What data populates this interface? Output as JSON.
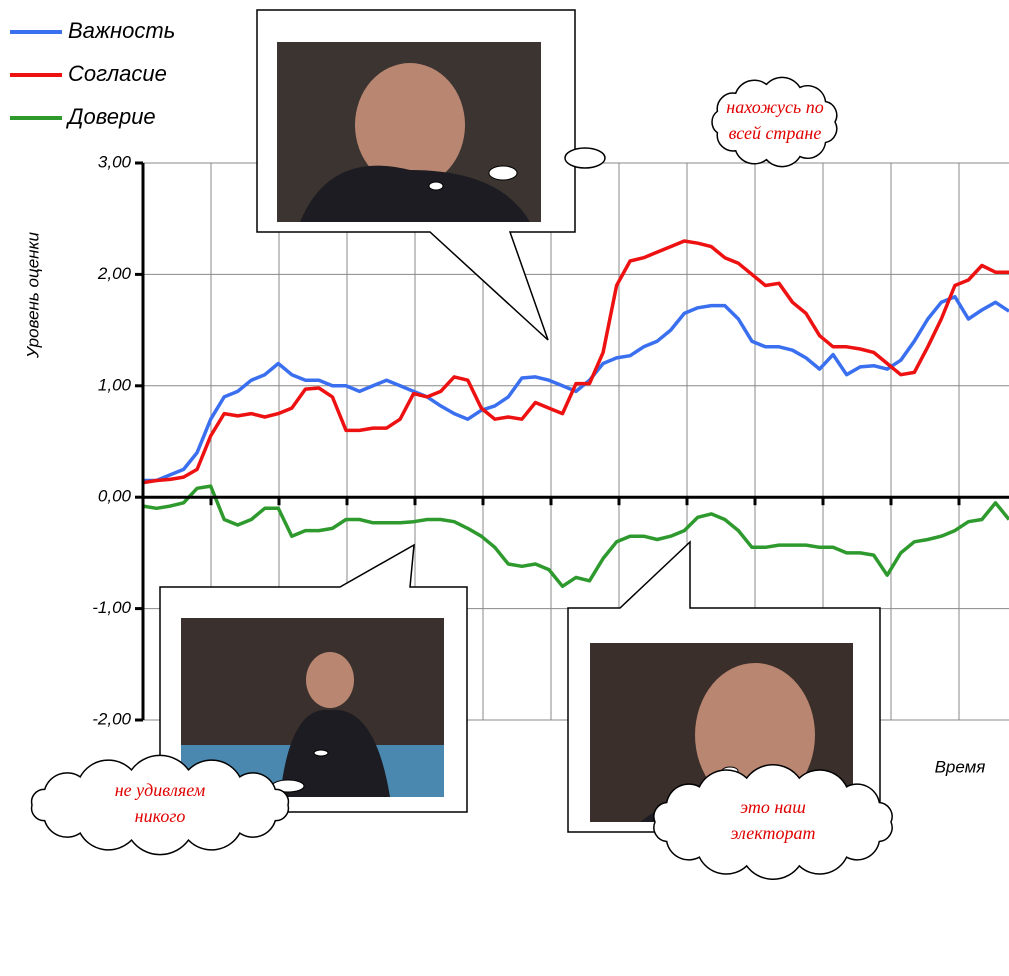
{
  "chart_data": {
    "type": "line",
    "y_label": "Уровень оценки",
    "x_label": "Время",
    "ylim": [
      -2,
      3
    ],
    "yticks": [
      {
        "value": -2,
        "label": "-2,00"
      },
      {
        "value": -1,
        "label": "-1,00"
      },
      {
        "value": 0,
        "label": "0,00"
      },
      {
        "value": 1,
        "label": "1,00"
      },
      {
        "value": 2,
        "label": "2,00"
      },
      {
        "value": 3,
        "label": "3,00"
      }
    ],
    "grid": true,
    "legend": "top-left",
    "series": [
      {
        "name": "Важность",
        "color": "#3a6ff0",
        "values": [
          0.15,
          0.15,
          0.2,
          0.25,
          0.4,
          0.7,
          0.9,
          0.95,
          1.05,
          1.1,
          1.2,
          1.1,
          1.05,
          1.05,
          1.0,
          1.0,
          0.95,
          1.0,
          1.05,
          1.0,
          0.95,
          0.9,
          0.82,
          0.75,
          0.7,
          0.78,
          0.82,
          0.9,
          1.07,
          1.08,
          1.05,
          1.0,
          0.95,
          1.05,
          1.2,
          1.25,
          1.27,
          1.35,
          1.4,
          1.5,
          1.65,
          1.7,
          1.72,
          1.72,
          1.6,
          1.4,
          1.35,
          1.35,
          1.32,
          1.25,
          1.15,
          1.28,
          1.1,
          1.17,
          1.18,
          1.15,
          1.23,
          1.4,
          1.6,
          1.75,
          1.8,
          1.6,
          1.68,
          1.75,
          1.67
        ]
      },
      {
        "name": "Согласие",
        "color": "#ee1111",
        "values": [
          0.13,
          0.15,
          0.16,
          0.18,
          0.25,
          0.55,
          0.75,
          0.73,
          0.75,
          0.72,
          0.75,
          0.8,
          0.97,
          0.98,
          0.9,
          0.6,
          0.6,
          0.62,
          0.62,
          0.7,
          0.93,
          0.9,
          0.95,
          1.08,
          1.05,
          0.8,
          0.7,
          0.72,
          0.7,
          0.85,
          0.8,
          0.75,
          1.02,
          1.02,
          1.3,
          1.9,
          2.12,
          2.15,
          2.2,
          2.25,
          2.3,
          2.28,
          2.25,
          2.15,
          2.1,
          2.0,
          1.9,
          1.92,
          1.75,
          1.65,
          1.45,
          1.35,
          1.35,
          1.33,
          1.3,
          1.2,
          1.1,
          1.12,
          1.35,
          1.6,
          1.9,
          1.95,
          2.08,
          2.02,
          2.02
        ]
      },
      {
        "name": "Доверие",
        "color": "#2e9a2e",
        "values": [
          -0.08,
          -0.1,
          -0.08,
          -0.05,
          0.08,
          0.1,
          -0.2,
          -0.25,
          -0.2,
          -0.1,
          -0.1,
          -0.35,
          -0.3,
          -0.3,
          -0.28,
          -0.2,
          -0.2,
          -0.23,
          -0.23,
          -0.23,
          -0.22,
          -0.2,
          -0.2,
          -0.22,
          -0.28,
          -0.35,
          -0.45,
          -0.6,
          -0.62,
          -0.6,
          -0.65,
          -0.8,
          -0.72,
          -0.75,
          -0.55,
          -0.4,
          -0.35,
          -0.35,
          -0.38,
          -0.35,
          -0.3,
          -0.18,
          -0.15,
          -0.2,
          -0.3,
          -0.45,
          -0.45,
          -0.43,
          -0.43,
          -0.43,
          -0.45,
          -0.45,
          -0.5,
          -0.5,
          -0.52,
          -0.7,
          -0.5,
          -0.4,
          -0.38,
          -0.35,
          -0.3,
          -0.22,
          -0.2,
          -0.05,
          -0.2
        ]
      }
    ],
    "annotations": [
      {
        "lines": [
          "нахожусь по",
          "всей стране"
        ]
      },
      {
        "lines": [
          "не удивляем",
          "никого"
        ]
      },
      {
        "lines": [
          "это наш",
          "электорат"
        ]
      }
    ]
  }
}
